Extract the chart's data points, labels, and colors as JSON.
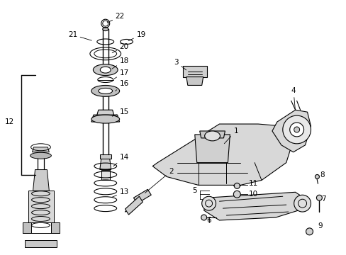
{
  "bg": "#ffffff",
  "lc": "#000000",
  "parts_label_positions": {
    "22": [
      155,
      22,
      148,
      32
    ],
    "21": [
      108,
      48,
      128,
      55
    ],
    "19": [
      188,
      48,
      173,
      55
    ],
    "20": [
      168,
      65,
      153,
      72
    ],
    "18": [
      168,
      85,
      153,
      92
    ],
    "17": [
      168,
      102,
      155,
      108
    ],
    "16": [
      168,
      118,
      160,
      122
    ],
    "15": [
      168,
      162,
      155,
      158
    ],
    "14": [
      168,
      222,
      158,
      235
    ],
    "13": [
      168,
      272,
      153,
      278
    ],
    "12": [
      20,
      172,
      20,
      172
    ],
    "3": [
      253,
      87,
      265,
      93
    ],
    "1": [
      328,
      188,
      313,
      208
    ],
    "2": [
      238,
      245,
      208,
      270
    ],
    "4": [
      410,
      130,
      415,
      158
    ],
    "5": [
      280,
      270,
      295,
      270
    ],
    "6": [
      295,
      308,
      295,
      302
    ],
    "7": [
      448,
      282,
      445,
      288
    ],
    "8": [
      448,
      248,
      442,
      253
    ],
    "9": [
      448,
      320,
      440,
      327
    ],
    "10": [
      350,
      275,
      337,
      275
    ],
    "11": [
      350,
      260,
      337,
      262
    ]
  }
}
